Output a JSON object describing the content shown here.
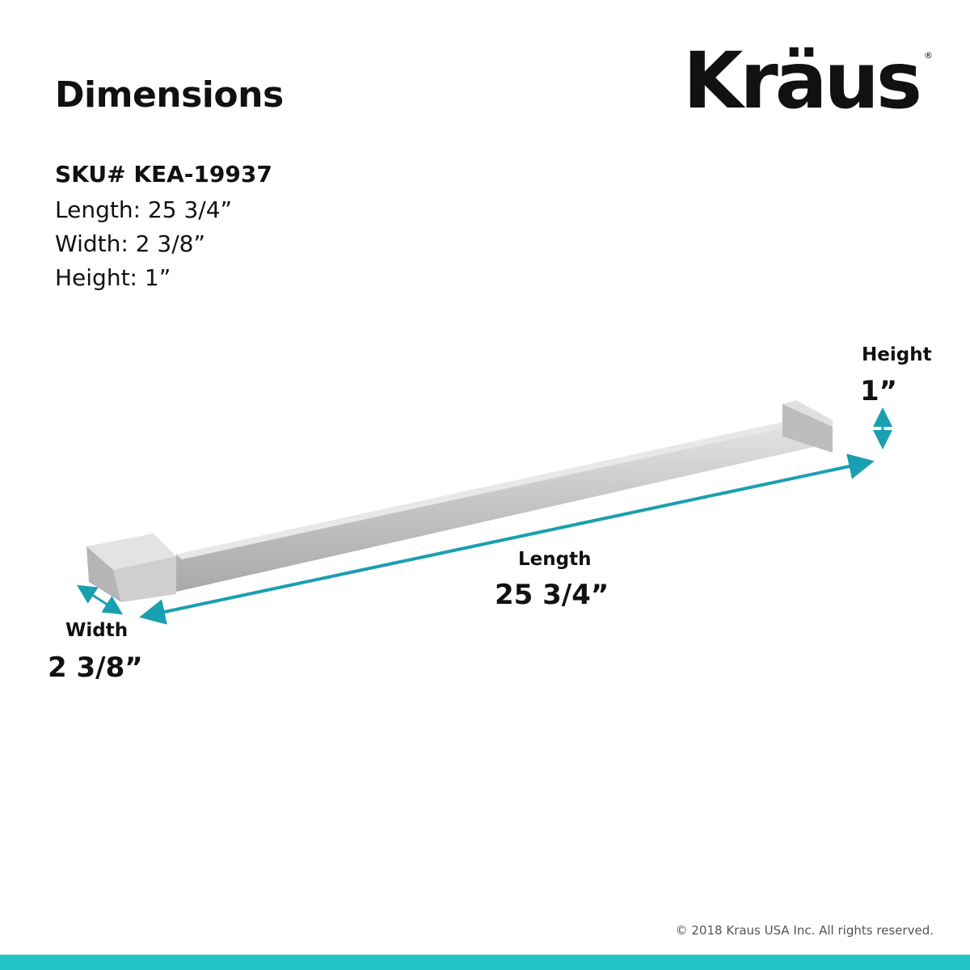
{
  "header": {
    "title": "Dimensions",
    "logo": "Kräus",
    "logo_mark": "®"
  },
  "specs": {
    "sku": "SKU# KEA-19937",
    "length": "Length: 25 3/4”",
    "width": "Width: 2 3/8”",
    "height": "Height: 1”"
  },
  "callouts": {
    "height_label": "Height",
    "height_value": "1”",
    "length_label": "Length",
    "length_value": "25 3/4”",
    "width_label": "Width",
    "width_value": "2 3/8”"
  },
  "footer": {
    "copyright": "© 2018 Kraus USA Inc. All rights reserved."
  },
  "colors": {
    "accent": "#20c4c4",
    "arrow": "#1a9fb0",
    "metal": "#c9c9c9"
  }
}
